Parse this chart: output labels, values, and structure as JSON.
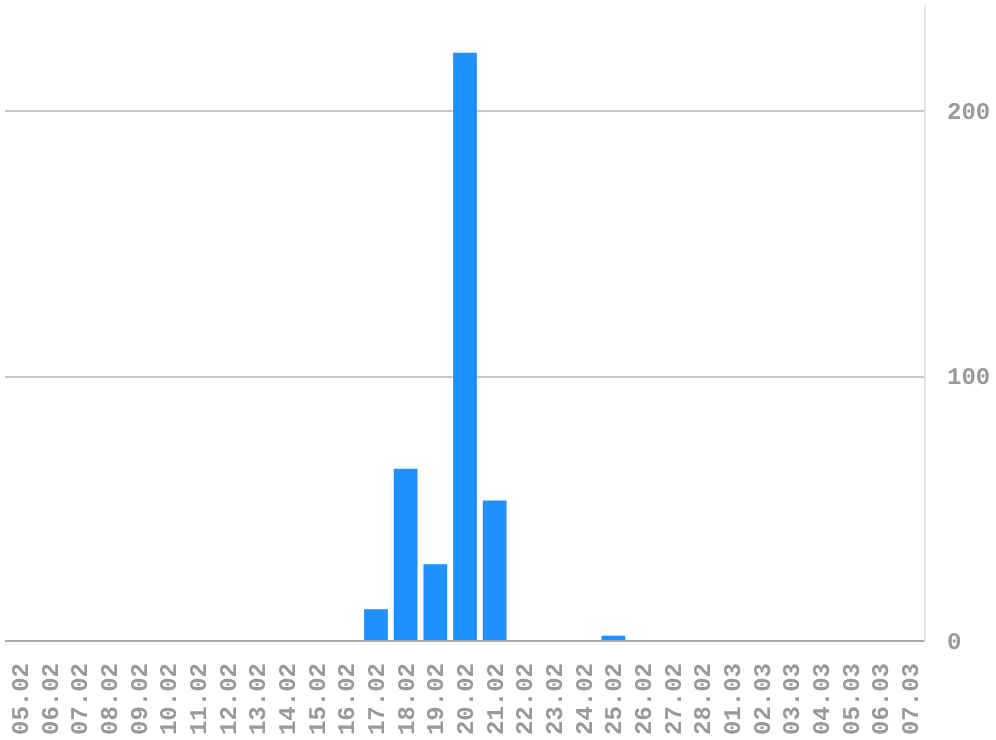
{
  "chart_data": {
    "type": "bar",
    "categories": [
      "05.02",
      "06.02",
      "07.02",
      "08.02",
      "09.02",
      "10.02",
      "11.02",
      "12.02",
      "13.02",
      "14.02",
      "15.02",
      "16.02",
      "17.02",
      "18.02",
      "19.02",
      "20.02",
      "21.02",
      "22.02",
      "23.02",
      "24.02",
      "25.02",
      "26.02",
      "27.02",
      "28.02",
      "01.03",
      "02.03",
      "03.03",
      "04.03",
      "05.03",
      "06.03",
      "07.03"
    ],
    "values": [
      0,
      0,
      0,
      0,
      0,
      0,
      0,
      0,
      0,
      0,
      0,
      0,
      12,
      65,
      29,
      222,
      53,
      0,
      0,
      0,
      2,
      0,
      0,
      0,
      0,
      0,
      0,
      0,
      0,
      0,
      0
    ],
    "color": "#1e90ff",
    "ylim": [
      0,
      240
    ],
    "yticks": [
      0,
      100,
      200
    ],
    "grid": "y"
  }
}
